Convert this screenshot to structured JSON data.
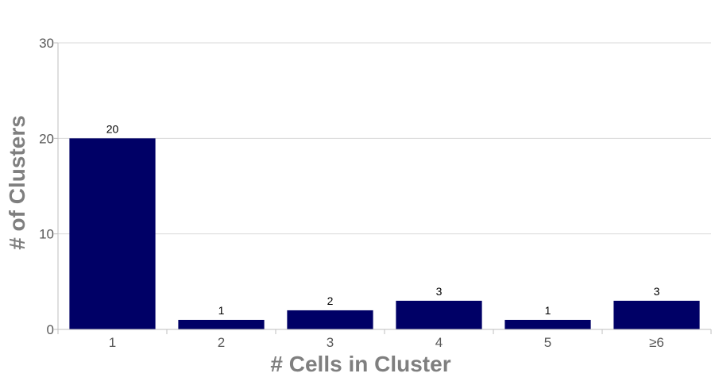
{
  "chart_data": {
    "type": "bar",
    "categories": [
      "1",
      "2",
      "3",
      "4",
      "5",
      "≥6"
    ],
    "values": [
      20,
      1,
      2,
      3,
      1,
      3
    ],
    "data_labels": [
      "20",
      "1",
      "2",
      "3",
      "1",
      "3"
    ],
    "xlabel": "# Cells in Cluster",
    "ylabel": "# of Clusters",
    "ylim": [
      0,
      30
    ],
    "yticks": [
      "0",
      "10",
      "20",
      "30"
    ],
    "grid": true,
    "bar_color": "#000066"
  }
}
